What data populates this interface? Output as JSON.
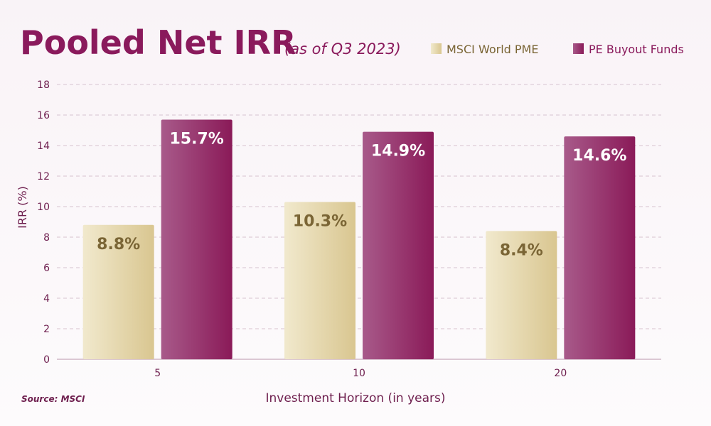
{
  "chart_data": {
    "type": "bar",
    "title": "Pooled Net IRR",
    "subtitle": "(as of Q3 2023)",
    "xlabel": "Investment Horizon (in years)",
    "ylabel": "IRR (%)",
    "ylim": [
      0,
      18
    ],
    "yticks": [
      0,
      2,
      4,
      6,
      8,
      10,
      12,
      14,
      16,
      18
    ],
    "categories": [
      "5",
      "10",
      "20"
    ],
    "series": [
      {
        "name": "MSCI World PME",
        "values": [
          8.8,
          10.3,
          8.4
        ],
        "labels": [
          "8.8%",
          "10.3%",
          "8.4%"
        ],
        "color": "#dccd9a",
        "label_color": "#7a6535"
      },
      {
        "name": "PE Buyout Funds",
        "values": [
          15.7,
          14.9,
          14.6
        ],
        "labels": [
          "15.7%",
          "14.9%",
          "14.6%"
        ],
        "color": "#8e1f5e",
        "label_color": "#ffffff"
      }
    ],
    "grid": true,
    "legend_position": "top-right"
  },
  "source": "Source: MSCI",
  "colors": {
    "title": "#8a1a5c",
    "axis_text": "#6e1e4e",
    "grid": "#d7c3cf",
    "axis_line": "#c7a9bb"
  }
}
